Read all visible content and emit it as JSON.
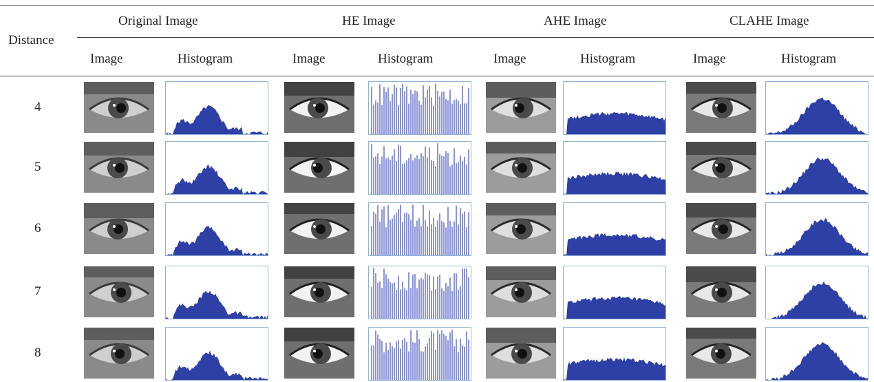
{
  "table": {
    "row_header": "Distance",
    "groups": [
      "Original Image",
      "HE Image",
      "AHE Image",
      "CLAHE Image"
    ],
    "subheaders": [
      "Image",
      "Histogram",
      "Image",
      "Histogram",
      "Image",
      "Histogram",
      "Image",
      "Histogram"
    ],
    "rows": [
      {
        "distance": "4"
      },
      {
        "distance": "5"
      },
      {
        "distance": "6"
      },
      {
        "distance": "7"
      },
      {
        "distance": "8"
      }
    ]
  },
  "colors": {
    "histogram_fill": "#2e3fa5",
    "histogram_lines": "#5a66c9",
    "histogram_border": "#8fb4d8",
    "rule": "#444444"
  },
  "icons": {
    "eye_image": "grayscale-eye-photo",
    "histogram": "intensity-histogram"
  }
}
